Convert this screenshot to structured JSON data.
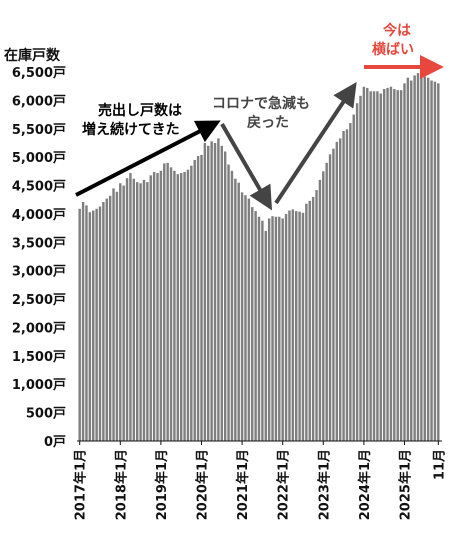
{
  "chart_data": {
    "type": "bar",
    "ylabel": "在庫戸数",
    "ylim": [
      0,
      6500
    ],
    "yticks": [
      0,
      500,
      1000,
      1500,
      2000,
      2500,
      3000,
      3500,
      4000,
      4500,
      5000,
      5500,
      6000,
      6500
    ],
    "ytick_labels": [
      "0戸",
      "500戸",
      "1,000戸",
      "1,500戸",
      "2,000戸",
      "2,500戸",
      "3,000戸",
      "3,500戸",
      "4,000戸",
      "4,500戸",
      "5,000戸",
      "5,500戸",
      "6,000戸",
      "6,500戸"
    ],
    "x_tick_labels": [
      {
        "index": 0,
        "text": "2017年1月"
      },
      {
        "index": 12,
        "text": "2018年1月"
      },
      {
        "index": 24,
        "text": "2019年1月"
      },
      {
        "index": 36,
        "text": "2020年1月"
      },
      {
        "index": 48,
        "text": "2021年1月"
      },
      {
        "index": 60,
        "text": "2022年1月"
      },
      {
        "index": 72,
        "text": "2023年1月"
      },
      {
        "index": 84,
        "text": "2024年1月"
      },
      {
        "index": 96,
        "text": "2025年1月"
      },
      {
        "index": 106,
        "text": "11月"
      }
    ],
    "series": [
      {
        "color": "#7f7f7f",
        "values": [
          4090,
          4210,
          4150,
          4030,
          4060,
          4090,
          4130,
          4210,
          4270,
          4320,
          4450,
          4390,
          4540,
          4500,
          4630,
          4720,
          4620,
          4560,
          4540,
          4600,
          4560,
          4680,
          4740,
          4720,
          4760,
          4890,
          4900,
          4820,
          4760,
          4700,
          4720,
          4740,
          4780,
          4850,
          4950,
          5020,
          5040,
          5250,
          5200,
          5280,
          5250,
          5330,
          5200,
          5100,
          4870,
          4760,
          4620,
          4550,
          4380,
          4330,
          4270,
          4120,
          4050,
          3950,
          3880,
          3700,
          3920,
          3960,
          3950,
          3950,
          3920,
          4000,
          4060,
          4080,
          4050,
          4040,
          4020,
          4180,
          4230,
          4300,
          4420,
          4600,
          4750,
          4900,
          5050,
          5150,
          5270,
          5330,
          5460,
          5490,
          5600,
          5750,
          5950,
          6080,
          6240,
          6220,
          6160,
          6160,
          6160,
          6120,
          6200,
          6220,
          6240,
          6200,
          6180,
          6180,
          6300,
          6400,
          6350,
          6440,
          6480,
          6480,
          6420,
          6400,
          6350,
          6330,
          6300
        ]
      }
    ],
    "annotations": [
      {
        "lines": [
          "売出し戸数は",
          "増え続けてきた"
        ],
        "color": "#000000"
      },
      {
        "lines": [
          "コロナで急減も",
          "戻った"
        ],
        "color": "#444444"
      },
      {
        "lines": [
          "今は",
          "横ばい"
        ],
        "color": "#e8473d"
      }
    ]
  }
}
